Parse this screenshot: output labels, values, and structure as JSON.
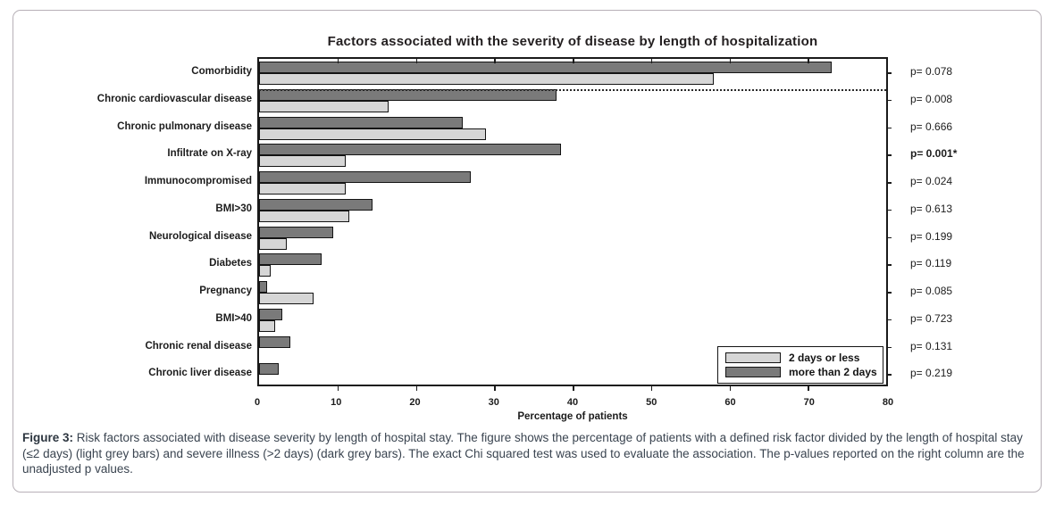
{
  "figure": {
    "caption_label": "Figure 3:",
    "caption_text": " Risk factors associated with disease severity by length of hospital stay. The figure shows the percentage of patients with a defined risk factor divided by the length of hospital stay (≤2 days) (light grey bars) and severe illness (>2 days) (dark grey bars). The exact Chi squared test was used to evaluate the association. The p-values reported on the right column are the unadjusted p values."
  },
  "chart_data": {
    "type": "bar",
    "orientation": "horizontal",
    "title": "Factors associated with the severity of disease by length of hospitalization",
    "xlabel": "Percentage of patients",
    "xlim": [
      0,
      80
    ],
    "xticks": [
      0,
      10,
      20,
      30,
      40,
      50,
      60,
      70,
      80
    ],
    "grid": false,
    "legend_position": "lower right",
    "categories": [
      "Comorbidity",
      "Chronic cardiovascular disease",
      "Chronic pulmonary disease",
      "Infiltrate on X-ray",
      "Immunocompromised",
      "BMI>30",
      "Neurological disease",
      "Diabetes",
      "Pregnancy",
      "BMI>40",
      "Chronic renal disease",
      "Chronic liver disease"
    ],
    "series": [
      {
        "name": "2 days or less",
        "color": "#d6d6d6",
        "values": [
          58,
          16.5,
          29,
          11,
          11,
          11.5,
          3.5,
          1.5,
          7,
          2,
          0,
          0
        ]
      },
      {
        "name": "more than 2 days",
        "color": "#7a7a7a",
        "values": [
          73,
          38,
          26,
          38.5,
          27,
          14.5,
          9.5,
          8,
          1,
          3,
          4,
          2.5
        ]
      }
    ],
    "p_values": [
      {
        "label": "p= 0.078",
        "emphasis": false
      },
      {
        "label": "p= 0.008",
        "emphasis": false
      },
      {
        "label": "p= 0.666",
        "emphasis": false
      },
      {
        "label": "p= 0.001*",
        "emphasis": true
      },
      {
        "label": "p= 0.024",
        "emphasis": false
      },
      {
        "label": "p= 0.613",
        "emphasis": false
      },
      {
        "label": "p= 0.199",
        "emphasis": false
      },
      {
        "label": "p= 0.119",
        "emphasis": false
      },
      {
        "label": "p= 0.085",
        "emphasis": false
      },
      {
        "label": "p= 0.723",
        "emphasis": false
      },
      {
        "label": "p= 0.131",
        "emphasis": false
      },
      {
        "label": "p= 0.219",
        "emphasis": false
      }
    ],
    "separator_after_category_index": 0,
    "bar_border_color": "#141414",
    "accent_colors": {
      "light_grey_bar": "#d6d6d6",
      "dark_grey_bar": "#7a7a7a"
    }
  }
}
